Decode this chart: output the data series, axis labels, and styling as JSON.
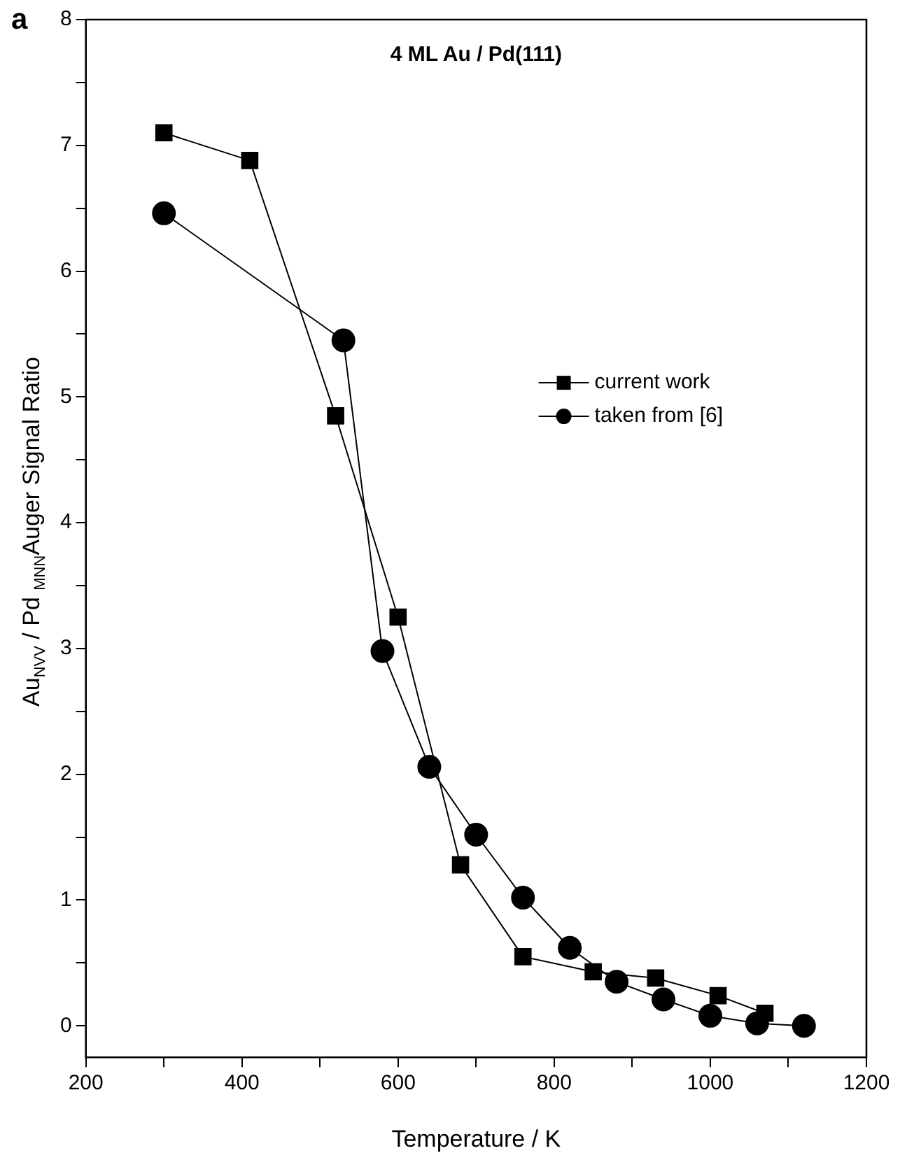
{
  "chart_data": {
    "type": "line",
    "title": "4 ML Au / Pd(111)",
    "xlabel": "Temperature / K",
    "ylabel": "Au$_{NVV}$ / Pd $_{MNN}$Auger Signal Ratio",
    "annotations": [
      "a"
    ],
    "xlim": [
      200,
      1200
    ],
    "xticks": [
      200,
      {
        "value": 300,
        "label": null
      },
      400,
      {
        "value": 500,
        "label": null
      },
      600,
      {
        "value": 700,
        "label": null
      },
      800,
      {
        "value": 900,
        "label": null
      },
      1000,
      {
        "value": 1100,
        "label": null
      },
      1200
    ],
    "ylim": [
      -0.25,
      8
    ],
    "yticks": [
      0,
      {
        "value": 0.5,
        "label": null
      },
      1,
      {
        "value": 1.5,
        "label": null
      },
      2,
      {
        "value": 2.5,
        "label": null
      },
      3,
      {
        "value": 3.5,
        "label": null
      },
      4,
      {
        "value": 4.5,
        "label": null
      },
      5,
      {
        "value": 5.5,
        "label": null
      },
      6,
      {
        "value": 6.5,
        "label": null
      },
      7,
      {
        "value": 7.5,
        "label": null
      },
      8
    ],
    "grid": false,
    "legend": "right",
    "line_style": "solid",
    "series": [
      {
        "name": "current work",
        "color": "#000000",
        "marker": "square",
        "x": [
          300,
          410,
          520,
          600,
          680,
          760,
          850,
          930,
          1010,
          1070
        ],
        "values": [
          7.1,
          6.88,
          4.85,
          3.25,
          1.28,
          0.55,
          0.43,
          0.38,
          0.24,
          0.1
        ]
      },
      {
        "name": "taken from [6]",
        "color": "#000000",
        "marker": "circle",
        "x": [
          300,
          530,
          580,
          640,
          700,
          760,
          820,
          880,
          940,
          1000,
          1060,
          1120
        ],
        "values": [
          6.46,
          5.45,
          2.98,
          2.06,
          1.52,
          1.02,
          0.62,
          0.35,
          0.21,
          0.08,
          0.02,
          0
        ]
      }
    ]
  }
}
